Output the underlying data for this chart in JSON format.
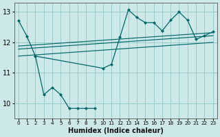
{
  "xlabel": "Humidex (Indice chaleur)",
  "bg_color": "#cce8e8",
  "grid_color": "#99cccc",
  "line_color": "#006666",
  "xlim": [
    -0.5,
    23.5
  ],
  "ylim": [
    9.5,
    13.3
  ],
  "yticks": [
    10,
    11,
    12,
    13
  ],
  "xticks": [
    0,
    1,
    2,
    3,
    4,
    5,
    6,
    7,
    8,
    9,
    10,
    11,
    12,
    13,
    14,
    15,
    16,
    17,
    18,
    19,
    20,
    21,
    22,
    23
  ],
  "series1_x": [
    0,
    1,
    2,
    3,
    4,
    5,
    6,
    7,
    8,
    9
  ],
  "series1_y": [
    12.72,
    12.2,
    11.55,
    10.28,
    10.52,
    10.28,
    9.83,
    9.83,
    9.83,
    9.83
  ],
  "series2_x": [
    2,
    10,
    11,
    12,
    13,
    14,
    15,
    16,
    17,
    18,
    19,
    20,
    21,
    22,
    23
  ],
  "series2_y": [
    11.55,
    11.15,
    11.28,
    12.17,
    13.07,
    12.82,
    12.65,
    12.65,
    12.38,
    12.73,
    13.0,
    12.73,
    12.1,
    12.22,
    12.35
  ],
  "trend_lines": [
    {
      "x": [
        0,
        23
      ],
      "y": [
        11.55,
        12.0
      ]
    },
    {
      "x": [
        0,
        23
      ],
      "y": [
        11.78,
        12.22
      ]
    },
    {
      "x": [
        0,
        23
      ],
      "y": [
        11.88,
        12.32
      ]
    }
  ]
}
